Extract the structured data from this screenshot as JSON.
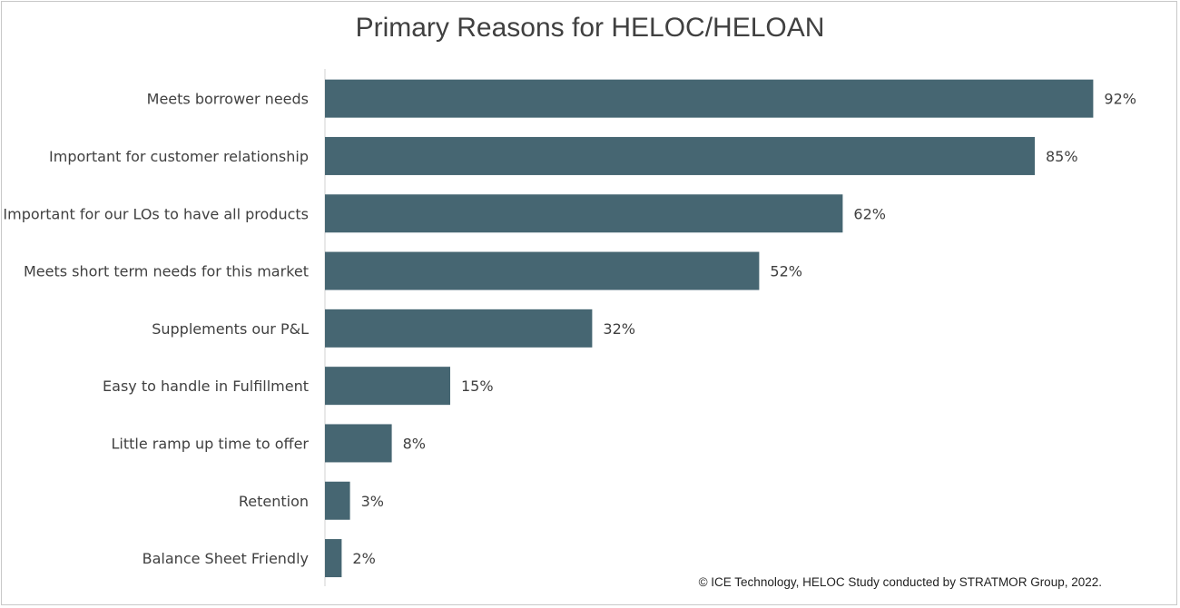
{
  "chart_data": {
    "type": "bar",
    "orientation": "horizontal",
    "title": "Primary Reasons for HELOC/HELOAN",
    "categories": [
      "Meets borrower needs",
      "Important for customer relationship",
      "Important for our LOs to have all products",
      "Meets short term needs for this market",
      "Supplements our P&L",
      "Easy to handle in Fulfillment",
      "Little ramp up time to offer",
      "Retention",
      "Balance Sheet Friendly"
    ],
    "values": [
      92,
      85,
      62,
      52,
      32,
      15,
      8,
      3,
      2
    ],
    "value_labels": [
      "92%",
      "85%",
      "62%",
      "52%",
      "32%",
      "15%",
      "8%",
      "3%",
      "2%"
    ],
    "unit": "%",
    "xlim": [
      0,
      100
    ],
    "grid": false,
    "legend": "none",
    "bar_color": "#466672"
  },
  "footer": {
    "credit": "© ICE Technology, HELOC Study conducted by STRATMOR Group, 2022."
  }
}
